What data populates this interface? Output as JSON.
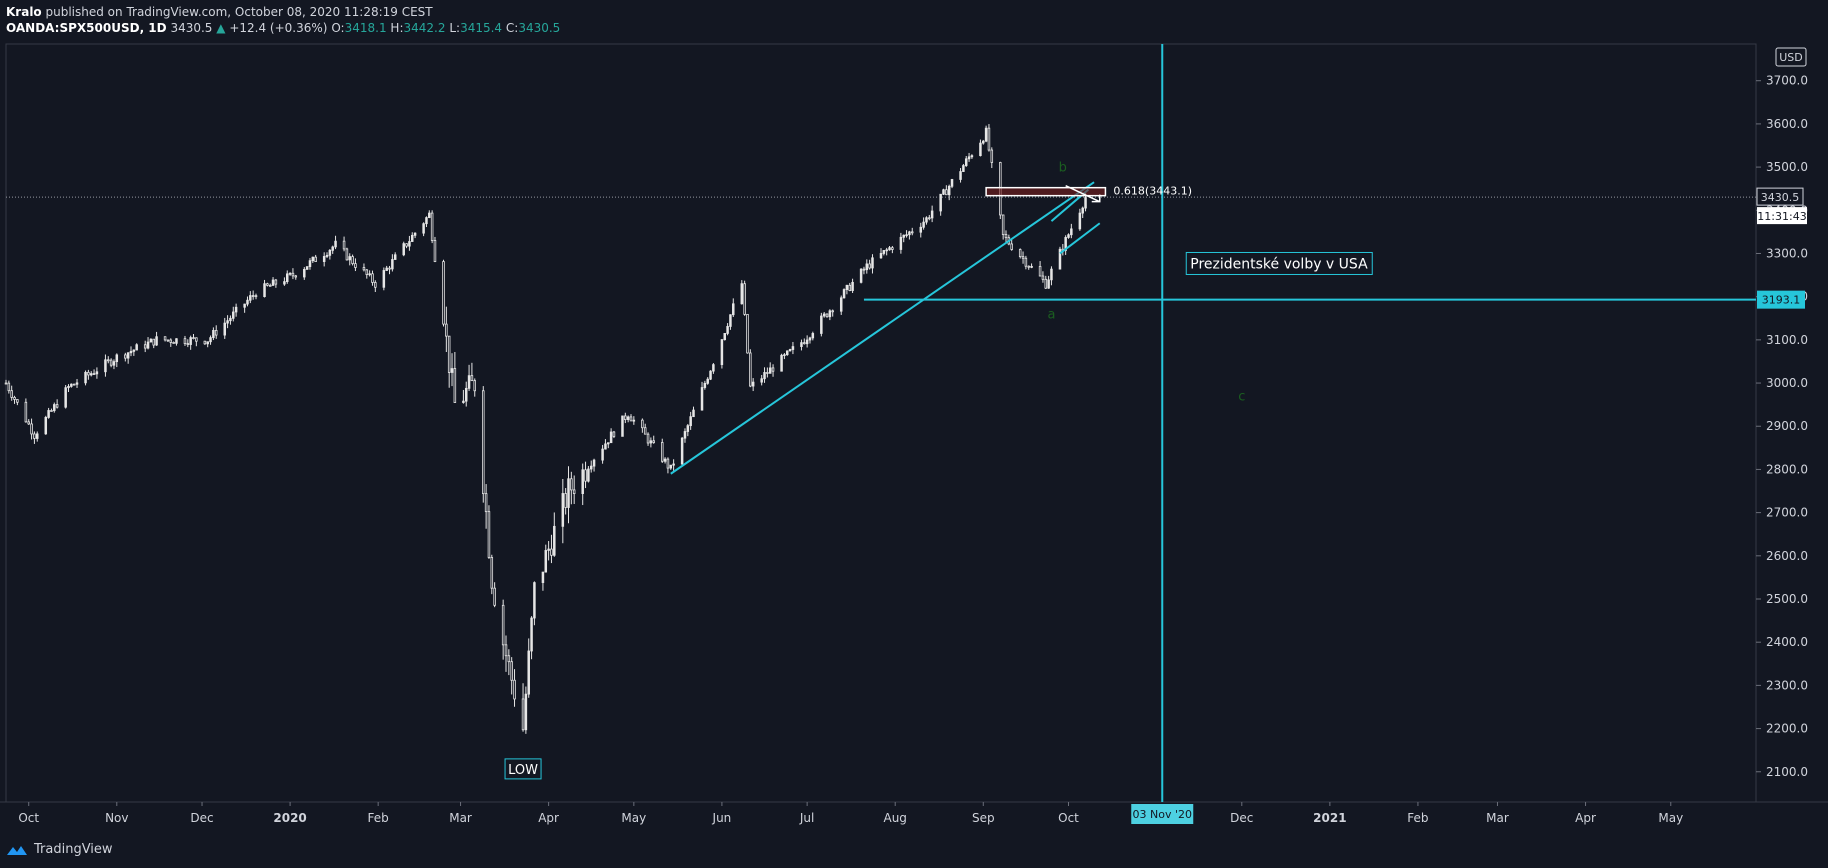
{
  "header": {
    "publisher": "Kralo",
    "published_text": "published on TradingView.com, October 08, 2020 11:28:19 CEST",
    "symbol": "OANDA:SPX500USD, 1D",
    "last_price": "3430.5",
    "change": "+12.4 (+0.36%)",
    "o_label": "O:",
    "o_value": "3418.1",
    "h_label": "H:",
    "h_value": "3442.2",
    "l_label": "L:",
    "l_value": "3415.4",
    "c_label": "C:",
    "c_value": "3430.5"
  },
  "footer": {
    "brand": "TradingView"
  },
  "colors": {
    "background": "#131722",
    "accent": "#26c6da",
    "up": "#26a69a",
    "candle": "#e6e6e6",
    "wave_label": "#1b5e20"
  },
  "chart_data": {
    "type": "candlestick",
    "currency": "USD",
    "ylim": [
      2030,
      3785
    ],
    "y_ticks": [
      "2100.0",
      "2200.0",
      "2300.0",
      "2400.0",
      "2500.0",
      "2600.0",
      "2700.0",
      "2800.0",
      "2900.0",
      "3000.0",
      "3100.0",
      "3200.0",
      "3300.0",
      "3400.0",
      "3500.0",
      "3600.0",
      "3700.0"
    ],
    "x_labels": [
      "Oct",
      "Nov",
      "Dec",
      "2020",
      "Feb",
      "Mar",
      "Apr",
      "May",
      "Jun",
      "Jul",
      "Aug",
      "Sep",
      "Oct",
      "Dec",
      "2021",
      "Feb",
      "Mar",
      "Apr",
      "May"
    ],
    "x_label_dates": [
      "2019-10-01",
      "2019-11-01",
      "2019-12-01",
      "2020-01-01",
      "2020-02-01",
      "2020-03-01",
      "2020-04-01",
      "2020-05-01",
      "2020-06-01",
      "2020-07-01",
      "2020-08-01",
      "2020-09-01",
      "2020-10-01",
      "2020-12-01",
      "2021-01-01",
      "2021-02-01",
      "2021-03-01",
      "2021-04-01",
      "2021-05-01"
    ],
    "x_range": [
      "2019-09-23",
      "2021-05-31"
    ],
    "series_close": [
      [
        "2019-09-23",
        3000
      ],
      [
        "2019-10-03",
        2880
      ],
      [
        "2019-10-15",
        2990
      ],
      [
        "2019-11-01",
        3060
      ],
      [
        "2019-11-15",
        3100
      ],
      [
        "2019-12-03",
        3100
      ],
      [
        "2019-12-20",
        3210
      ],
      [
        "2020-01-02",
        3250
      ],
      [
        "2020-01-17",
        3320
      ],
      [
        "2020-01-31",
        3230
      ],
      [
        "2020-02-19",
        3390
      ],
      [
        "2020-02-28",
        2950
      ],
      [
        "2020-03-06",
        3000
      ],
      [
        "2020-03-12",
        2550
      ],
      [
        "2020-03-16",
        2400
      ],
      [
        "2020-03-23",
        2200
      ],
      [
        "2020-03-27",
        2520
      ],
      [
        "2020-04-08",
        2750
      ],
      [
        "2020-04-29",
        2930
      ],
      [
        "2020-05-14",
        2800
      ],
      [
        "2020-05-29",
        3050
      ],
      [
        "2020-06-08",
        3230
      ],
      [
        "2020-06-11",
        2990
      ],
      [
        "2020-06-30",
        3100
      ],
      [
        "2020-07-22",
        3270
      ],
      [
        "2020-08-12",
        3380
      ],
      [
        "2020-09-02",
        3580
      ],
      [
        "2020-09-08",
        3340
      ],
      [
        "2020-09-23",
        3230
      ],
      [
        "2020-10-07",
        3430
      ]
    ],
    "last_price": "3430.5",
    "countdown": "11:31:43",
    "horizontal_level": {
      "label": "3193.1",
      "value": 3193.1,
      "from": "2020-07-21"
    },
    "vertical_event": {
      "date_label": "03 Nov '20",
      "date": "2020-11-03",
      "text": "Prezidentské volby v USA"
    },
    "fib_label": "0.618(3443.1)",
    "fib_level": 3443.1,
    "trendline_from": [
      "2020-05-14",
      2790
    ],
    "trendline_to": [
      "2020-10-10",
      3465
    ],
    "annotations": {
      "low": "LOW",
      "wave_a": "a",
      "wave_b": "b",
      "wave_c": "c"
    },
    "wave_points": {
      "a": [
        "2020-09-25",
        3150
      ],
      "b": [
        "2020-09-29",
        3490
      ],
      "c": [
        "2020-12-01",
        2960
      ]
    },
    "low_point": [
      "2020-03-23",
      2190
    ]
  }
}
